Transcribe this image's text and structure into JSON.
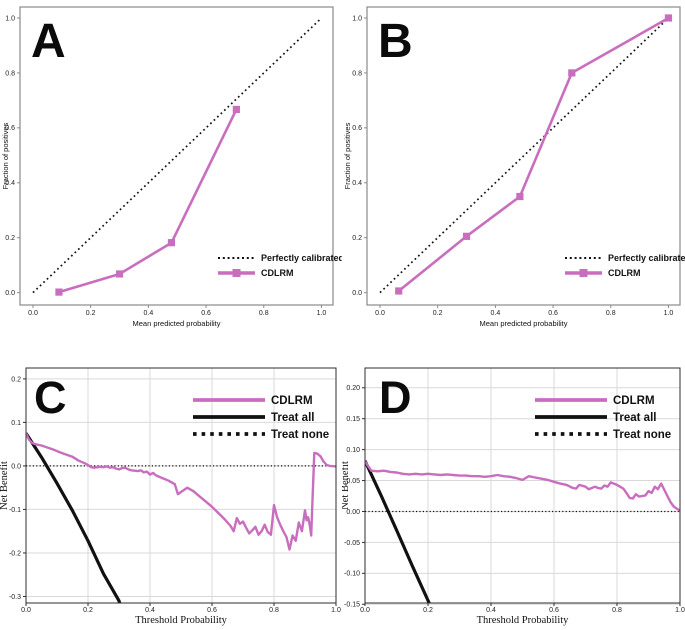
{
  "figure": {
    "background": "#ffffff",
    "accent_color": "#c96dbe",
    "line_black": "#111111",
    "grid_color": "#d9d9d9"
  },
  "chart_data": [
    {
      "id": "A",
      "panel_label": "A",
      "type": "line",
      "title": "",
      "xlabel": "Mean predicted probability",
      "ylabel": "Fraction of positives",
      "xlim": [
        -0.045,
        1.04
      ],
      "ylim": [
        -0.045,
        1.04
      ],
      "xticks": {
        "values": [
          0,
          0.2,
          0.4,
          0.6,
          0.8,
          1.0
        ],
        "labels": [
          "0.0",
          "0.2",
          "0.4",
          "0.6",
          "0.8",
          "1.0"
        ]
      },
      "yticks": {
        "values": [
          0,
          0.2,
          0.4,
          0.6,
          0.8,
          1.0
        ],
        "labels": [
          "0.0",
          "0.2",
          "0.4",
          "0.6",
          "0.8",
          "1.0"
        ]
      },
      "grid": false,
      "legend": {
        "position": "lower-right",
        "entries": [
          "Perfectly calibrated",
          "CDLRM"
        ]
      },
      "series": [
        {
          "name": "Perfectly calibrated",
          "color": "#111111",
          "line": "dotted",
          "lw": 1.7,
          "marker": "none",
          "x": [
            0,
            1
          ],
          "y": [
            0,
            1
          ]
        },
        {
          "name": "CDLRM",
          "color": "#c96dbe",
          "line": "solid",
          "lw": 2.6,
          "marker": "square",
          "x": [
            0.09,
            0.3,
            0.48,
            0.705
          ],
          "y": [
            0.002,
            0.068,
            0.182,
            0.667
          ]
        }
      ]
    },
    {
      "id": "B",
      "panel_label": "B",
      "type": "line",
      "title": "",
      "xlabel": "Mean predicted probability",
      "ylabel": "Fraction of positives",
      "xlim": [
        -0.045,
        1.04
      ],
      "ylim": [
        -0.045,
        1.04
      ],
      "xticks": {
        "values": [
          0,
          0.2,
          0.4,
          0.6,
          0.8,
          1.0
        ],
        "labels": [
          "0.0",
          "0.2",
          "0.4",
          "0.6",
          "0.8",
          "1.0"
        ]
      },
      "yticks": {
        "values": [
          0,
          0.2,
          0.4,
          0.6,
          0.8,
          1.0
        ],
        "labels": [
          "0.0",
          "0.2",
          "0.4",
          "0.6",
          "0.8",
          "1.0"
        ]
      },
      "grid": false,
      "legend": {
        "position": "lower-right",
        "entries": [
          "Perfectly calibrated",
          "CDLRM"
        ]
      },
      "series": [
        {
          "name": "Perfectly calibrated",
          "color": "#111111",
          "line": "dotted",
          "lw": 1.7,
          "marker": "none",
          "x": [
            0,
            1
          ],
          "y": [
            0,
            1
          ]
        },
        {
          "name": "CDLRM",
          "color": "#c96dbe",
          "line": "solid",
          "lw": 2.6,
          "marker": "square",
          "x": [
            0.065,
            0.3,
            0.485,
            0.665,
            1.0
          ],
          "y": [
            0.006,
            0.205,
            0.35,
            0.8,
            1.0
          ]
        }
      ]
    },
    {
      "id": "C",
      "panel_label": "C",
      "type": "line",
      "title": "",
      "xlabel": "Threshold Probability",
      "ylabel": "Net Benefit",
      "xlim": [
        0,
        1
      ],
      "ylim": [
        -0.315,
        0.225
      ],
      "xticks": {
        "values": [
          0,
          0.2,
          0.4,
          0.6,
          0.8,
          1.0
        ],
        "labels": [
          "0.0",
          "0.2",
          "0.4",
          "0.6",
          "0.8",
          "1.0"
        ]
      },
      "yticks": {
        "values": [
          0.2,
          0.1,
          0.0,
          -0.1,
          -0.2,
          -0.3
        ],
        "labels": [
          "0.2",
          "0.1",
          "0.0",
          "-0.1",
          "-0.2",
          "-0.3"
        ]
      },
      "grid": true,
      "legend": {
        "position": "upper-right",
        "entries": [
          "CDLRM",
          "Treat all",
          "Treat none"
        ]
      },
      "series": [
        {
          "name": "Treat none",
          "color": "#111111",
          "line": "dotted",
          "lw": 1.2,
          "marker": "none",
          "x": [
            0,
            1
          ],
          "y": [
            0,
            0
          ]
        },
        {
          "name": "Treat all",
          "color": "#111111",
          "line": "solid",
          "lw": 3.2,
          "marker": "none",
          "x": [
            0,
            0.05,
            0.1,
            0.15,
            0.2,
            0.25,
            0.3,
            0.32
          ],
          "y": [
            0.075,
            0.02,
            -0.04,
            -0.103,
            -0.172,
            -0.248,
            -0.31,
            -0.36
          ]
        },
        {
          "name": "CDLRM",
          "color": "#c96dbe",
          "line": "solid",
          "lw": 2.4,
          "marker": "none",
          "x": [
            0,
            0.01,
            0.02,
            0.03,
            0.05,
            0.07,
            0.09,
            0.11,
            0.13,
            0.15,
            0.17,
            0.19,
            0.2,
            0.21,
            0.22,
            0.24,
            0.25,
            0.26,
            0.27,
            0.28,
            0.29,
            0.3,
            0.31,
            0.32,
            0.33,
            0.34,
            0.36,
            0.37,
            0.38,
            0.39,
            0.4,
            0.41,
            0.42,
            0.44,
            0.46,
            0.48,
            0.49,
            0.5,
            0.52,
            0.54,
            0.56,
            0.58,
            0.6,
            0.62,
            0.64,
            0.66,
            0.67,
            0.68,
            0.69,
            0.7,
            0.71,
            0.72,
            0.73,
            0.74,
            0.75,
            0.76,
            0.77,
            0.78,
            0.79,
            0.8,
            0.81,
            0.82,
            0.83,
            0.84,
            0.85,
            0.86,
            0.87,
            0.88,
            0.89,
            0.9,
            0.905,
            0.91,
            0.915,
            0.92,
            0.925,
            0.93,
            0.94,
            0.95,
            0.96,
            0.97,
            0.98,
            1.0
          ],
          "y": [
            0.075,
            0.06,
            0.053,
            0.05,
            0.047,
            0.042,
            0.037,
            0.031,
            0.026,
            0.021,
            0.012,
            0.006,
            0.002,
            -0.003,
            -0.004,
            -0.002,
            -0.003,
            -0.001,
            -0.004,
            -0.003,
            -0.006,
            -0.008,
            -0.005,
            -0.004,
            -0.008,
            -0.01,
            -0.012,
            -0.01,
            -0.015,
            -0.013,
            -0.02,
            -0.016,
            -0.022,
            -0.028,
            -0.034,
            -0.042,
            -0.065,
            -0.06,
            -0.05,
            -0.058,
            -0.07,
            -0.082,
            -0.094,
            -0.108,
            -0.122,
            -0.138,
            -0.15,
            -0.12,
            -0.133,
            -0.128,
            -0.142,
            -0.155,
            -0.148,
            -0.14,
            -0.158,
            -0.15,
            -0.135,
            -0.152,
            -0.158,
            -0.09,
            -0.118,
            -0.135,
            -0.15,
            -0.163,
            -0.192,
            -0.16,
            -0.172,
            -0.13,
            -0.15,
            -0.102,
            -0.125,
            -0.118,
            -0.135,
            -0.16,
            -0.06,
            0.03,
            0.028,
            0.022,
            0.01,
            0.002,
            0.0,
            -0.001
          ]
        }
      ]
    },
    {
      "id": "D",
      "panel_label": "D",
      "type": "line",
      "title": "",
      "xlabel": "Threshold Probability",
      "ylabel": "Net Benefit",
      "xlim": [
        0,
        1
      ],
      "ylim": [
        -0.148,
        0.232
      ],
      "xticks": {
        "values": [
          0,
          0.2,
          0.4,
          0.6,
          0.8,
          1.0
        ],
        "labels": [
          "0.0",
          "0.2",
          "0.4",
          "0.6",
          "0.8",
          "1.0"
        ]
      },
      "yticks": {
        "values": [
          0.2,
          0.15,
          0.1,
          0.05,
          0.0,
          -0.05,
          -0.1,
          -0.15
        ],
        "labels": [
          "0.20",
          "0.15",
          "0.10",
          "0.05",
          "0.00",
          "-0.05",
          "-0.10",
          "-0.15"
        ]
      },
      "grid": true,
      "legend": {
        "position": "upper-right",
        "entries": [
          "CDLRM",
          "Treat all",
          "Treat none"
        ]
      },
      "series": [
        {
          "name": "Treat none",
          "color": "#111111",
          "line": "dotted",
          "lw": 1.2,
          "marker": "none",
          "x": [
            0,
            1
          ],
          "y": [
            0,
            0
          ]
        },
        {
          "name": "Treat all",
          "color": "#111111",
          "line": "solid",
          "lw": 3.2,
          "marker": "none",
          "x": [
            0,
            0.05,
            0.1,
            0.15,
            0.21
          ],
          "y": [
            0.082,
            0.027,
            -0.03,
            -0.088,
            -0.155
          ]
        },
        {
          "name": "CDLRM",
          "color": "#c96dbe",
          "line": "solid",
          "lw": 2.4,
          "marker": "none",
          "x": [
            0,
            0.02,
            0.04,
            0.06,
            0.08,
            0.1,
            0.12,
            0.14,
            0.16,
            0.18,
            0.2,
            0.22,
            0.24,
            0.26,
            0.28,
            0.3,
            0.32,
            0.34,
            0.36,
            0.38,
            0.4,
            0.42,
            0.44,
            0.46,
            0.48,
            0.5,
            0.52,
            0.54,
            0.56,
            0.58,
            0.6,
            0.62,
            0.64,
            0.66,
            0.67,
            0.68,
            0.7,
            0.71,
            0.72,
            0.73,
            0.74,
            0.75,
            0.76,
            0.77,
            0.78,
            0.79,
            0.8,
            0.81,
            0.82,
            0.83,
            0.84,
            0.85,
            0.86,
            0.87,
            0.88,
            0.89,
            0.9,
            0.91,
            0.92,
            0.93,
            0.94,
            0.95,
            0.96,
            0.97,
            0.98,
            1.0
          ],
          "y": [
            0.081,
            0.066,
            0.065,
            0.066,
            0.064,
            0.063,
            0.061,
            0.06,
            0.061,
            0.06,
            0.061,
            0.06,
            0.059,
            0.06,
            0.059,
            0.058,
            0.058,
            0.057,
            0.057,
            0.056,
            0.057,
            0.059,
            0.057,
            0.056,
            0.054,
            0.051,
            0.057,
            0.055,
            0.053,
            0.051,
            0.048,
            0.045,
            0.043,
            0.038,
            0.037,
            0.043,
            0.04,
            0.036,
            0.038,
            0.04,
            0.038,
            0.037,
            0.042,
            0.04,
            0.047,
            0.045,
            0.043,
            0.04,
            0.037,
            0.03,
            0.022,
            0.021,
            0.028,
            0.024,
            0.025,
            0.026,
            0.033,
            0.03,
            0.04,
            0.036,
            0.045,
            0.035,
            0.025,
            0.015,
            0.008,
            0.001
          ]
        }
      ]
    }
  ]
}
